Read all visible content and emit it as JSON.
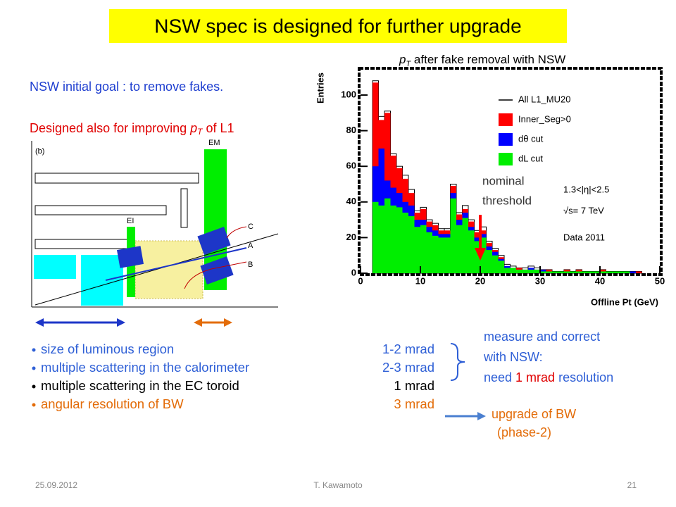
{
  "header": {
    "title": "NSW spec is designed for further upgrade"
  },
  "intro": {
    "goal": "NSW initial goal : to remove fakes.",
    "designed_parts": [
      "Designed also for improving ",
      "p",
      "T",
      " of L1"
    ]
  },
  "diagram": {
    "labels": [
      "(b)",
      "EM",
      "EI",
      "C",
      "A",
      "B"
    ]
  },
  "chart_data": {
    "type": "histogram",
    "title_parts": [
      "p",
      "T",
      " after fake removal with NSW"
    ],
    "x_label": "Offline Pt (GeV)",
    "y_label": "Entries",
    "bins": [
      0,
      1,
      2,
      3,
      4,
      5,
      6,
      7,
      8,
      9,
      10,
      11,
      12,
      13,
      14,
      15,
      16,
      17,
      18,
      19,
      20,
      21,
      22,
      23,
      24,
      25,
      26,
      27,
      28,
      29,
      30,
      31,
      32,
      33,
      34,
      35,
      36,
      37,
      38,
      39,
      40,
      41,
      42,
      43,
      44,
      45,
      46,
      47,
      48,
      49,
      50
    ],
    "series": [
      {
        "name": "All L1_MU20",
        "color": "#000000",
        "outline": true,
        "values": [
          0,
          0,
          108,
          88,
          91,
          67,
          60,
          55,
          47,
          35,
          37,
          30,
          28,
          25,
          25,
          50,
          34,
          38,
          30,
          24,
          26,
          18,
          14,
          10,
          5,
          4,
          3,
          3,
          4,
          3,
          2,
          2,
          1,
          1,
          2,
          1,
          2,
          1,
          1,
          1,
          2,
          1,
          1,
          1,
          1,
          1,
          1,
          0,
          0,
          0
        ]
      },
      {
        "name": "Inner_Seg>0",
        "color": "#ff0000",
        "values": [
          0,
          0,
          107,
          86,
          90,
          66,
          59,
          53,
          45,
          34,
          36,
          29,
          27,
          24,
          24,
          49,
          33,
          36,
          29,
          23,
          24,
          17,
          13,
          9,
          4,
          3,
          3,
          2,
          3,
          2,
          2,
          2,
          1,
          1,
          2,
          1,
          2,
          1,
          1,
          1,
          2,
          1,
          1,
          1,
          1,
          1,
          1,
          0,
          0,
          0
        ]
      },
      {
        "name": "dθ cut",
        "color": "#0000ff",
        "values": [
          0,
          0,
          60,
          70,
          52,
          48,
          45,
          40,
          38,
          30,
          30,
          26,
          24,
          22,
          22,
          45,
          30,
          34,
          26,
          20,
          22,
          15,
          12,
          8,
          4,
          3,
          2,
          2,
          3,
          2,
          2,
          1,
          1,
          1,
          1,
          1,
          1,
          1,
          1,
          1,
          1,
          1,
          1,
          1,
          1,
          1,
          0,
          0,
          0,
          0
        ]
      },
      {
        "name": "dL cut",
        "color": "#00ee00",
        "values": [
          0,
          0,
          40,
          38,
          42,
          38,
          37,
          34,
          32,
          26,
          27,
          23,
          21,
          20,
          20,
          42,
          27,
          31,
          24,
          18,
          20,
          13,
          10,
          7,
          3,
          3,
          2,
          2,
          2,
          2,
          1,
          1,
          1,
          1,
          1,
          1,
          1,
          1,
          1,
          1,
          1,
          1,
          1,
          1,
          1,
          0,
          0,
          0,
          0,
          0
        ]
      }
    ],
    "xlim": [
      0,
      50
    ],
    "xticks": [
      0,
      10,
      20,
      30,
      40,
      50
    ],
    "ylim": [
      0,
      115
    ],
    "yticks": [
      0,
      20,
      40,
      60,
      80,
      100
    ],
    "annotations": [
      "1.3<|η|<2.5",
      "√s= 7 TeV",
      "Data 2011"
    ],
    "threshold": {
      "x": 20,
      "label_lines": [
        "nominal",
        "threshold"
      ],
      "color": "#ff0000"
    }
  },
  "contributions": [
    {
      "text": "size of luminous region",
      "value": "1-2 mrad",
      "color": "#2e5fd6"
    },
    {
      "text": "multiple scattering in the calorimeter",
      "value": "2-3 mrad",
      "color": "#2e5fd6"
    },
    {
      "text": "multiple scattering in the EC toroid",
      "value": "1 mrad",
      "color": "#000000"
    },
    {
      "text": "angular resolution of BW",
      "value": "3 mrad",
      "color": "#e36c09"
    }
  ],
  "measure_note": {
    "lines": [
      "measure and correct",
      "with NSW:"
    ],
    "last_parts": [
      "need ",
      "1 mrad",
      " resolution"
    ]
  },
  "upgrade_note": [
    "upgrade of BW",
    "(phase-2)"
  ],
  "footer": {
    "date": "25.09.2012",
    "author": "T. Kawamoto",
    "page": "21"
  }
}
